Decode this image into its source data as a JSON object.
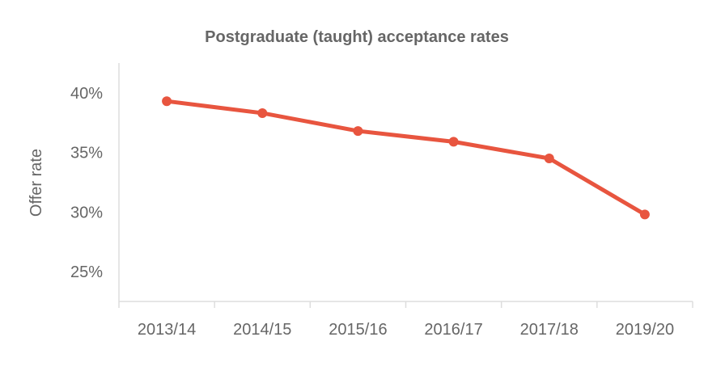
{
  "chart_data": {
    "type": "line",
    "title": "Postgraduate (taught) acceptance rates",
    "xlabel": "",
    "ylabel": "Offer rate",
    "categories": [
      "2013/14",
      "2014/15",
      "2015/16",
      "2016/17",
      "2017/18",
      "2019/20"
    ],
    "series": [
      {
        "values": [
          39.3,
          38.3,
          36.8,
          35.9,
          34.5,
          29.8
        ]
      }
    ],
    "yticks": [
      25,
      30,
      35,
      40
    ],
    "ytick_labels": [
      "25%",
      "30%",
      "35%",
      "40%"
    ],
    "ylim": [
      22.5,
      42.5
    ],
    "grid": false,
    "legend": "none",
    "colors": {
      "line": "#e8553f",
      "axis": "#dddddd",
      "text": "#666666"
    }
  }
}
